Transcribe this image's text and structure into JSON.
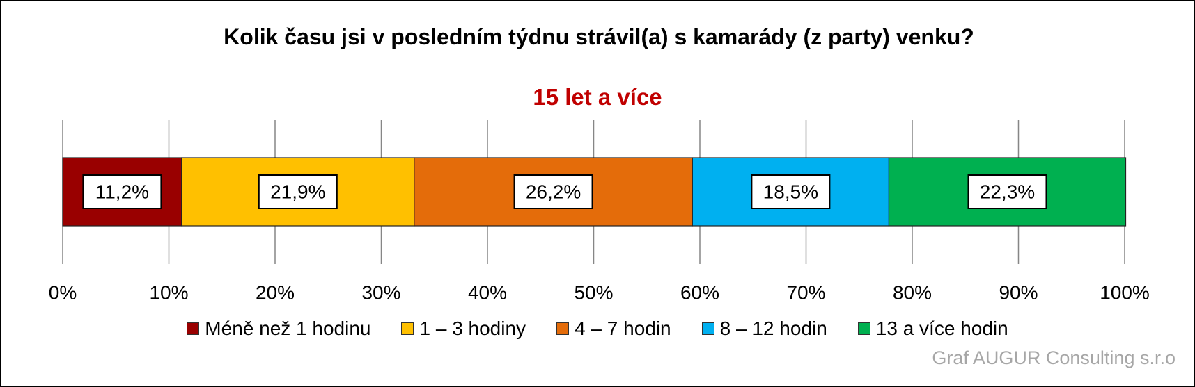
{
  "chart_data": {
    "type": "stacked_bar",
    "orientation": "horizontal",
    "title": "Kolik času jsi v posledním týdnu strávil(a) s kamarády (z party) venku?",
    "subtitle": "15 let a více",
    "subtitle_color": "#c00000",
    "categories": [
      null
    ],
    "series": [
      {
        "name": "Méně než 1 hodinu",
        "color": "#990000",
        "values": [
          11.2
        ],
        "value_labels": [
          "11,2%"
        ]
      },
      {
        "name": "1 – 3 hodiny",
        "color": "#ffc000",
        "values": [
          21.9
        ],
        "value_labels": [
          "21,9%"
        ]
      },
      {
        "name": "4 – 7 hodin",
        "color": "#e46c0a",
        "values": [
          26.2
        ],
        "value_labels": [
          "26,2%"
        ]
      },
      {
        "name": "8 – 12 hodin",
        "color": "#00b0f0",
        "values": [
          18.5
        ],
        "value_labels": [
          "18,5%"
        ]
      },
      {
        "name": "13 a více hodin",
        "color": "#00b050",
        "values": [
          22.3
        ],
        "value_labels": [
          "22,3%"
        ]
      }
    ],
    "xlim": [
      0,
      100
    ],
    "xticks": [
      {
        "value": 0,
        "label": "0%"
      },
      {
        "value": 10,
        "label": "10%"
      },
      {
        "value": 20,
        "label": "20%"
      },
      {
        "value": 30,
        "label": "30%"
      },
      {
        "value": 40,
        "label": "40%"
      },
      {
        "value": 50,
        "label": "50%"
      },
      {
        "value": 60,
        "label": "60%"
      },
      {
        "value": 70,
        "label": "70%"
      },
      {
        "value": 80,
        "label": "80%"
      },
      {
        "value": 90,
        "label": "90%"
      },
      {
        "value": 100,
        "label": "100%"
      }
    ],
    "grid": true,
    "legend": "bottom",
    "annotation": "Graf AUGUR Consulting s.r.o"
  }
}
